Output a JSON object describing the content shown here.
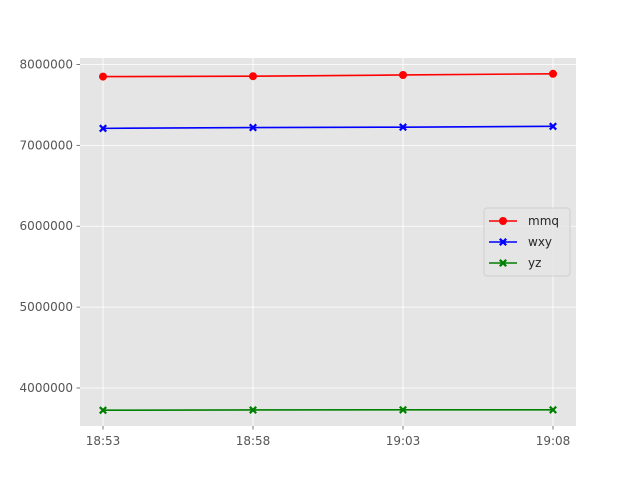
{
  "chart_data": {
    "type": "line",
    "title": "",
    "xlabel": "",
    "ylabel": "",
    "categories": [
      "18:53",
      "18:58",
      "19:03",
      "19:08"
    ],
    "ylim": [
      3530000,
      8080000
    ],
    "yticks": [
      4000000,
      5000000,
      6000000,
      7000000,
      8000000
    ],
    "grid": true,
    "legend_position": "center-right",
    "series": [
      {
        "name": "mmq",
        "color": "#ff0000",
        "marker": "circle",
        "values": [
          7850000,
          7855000,
          7870000,
          7885000
        ]
      },
      {
        "name": "wxy",
        "color": "#0000ff",
        "marker": "x",
        "values": [
          7210000,
          7220000,
          7225000,
          7235000
        ]
      },
      {
        "name": "yz",
        "color": "#008000",
        "marker": "x",
        "values": [
          3725000,
          3728000,
          3730000,
          3730000
        ]
      }
    ]
  }
}
